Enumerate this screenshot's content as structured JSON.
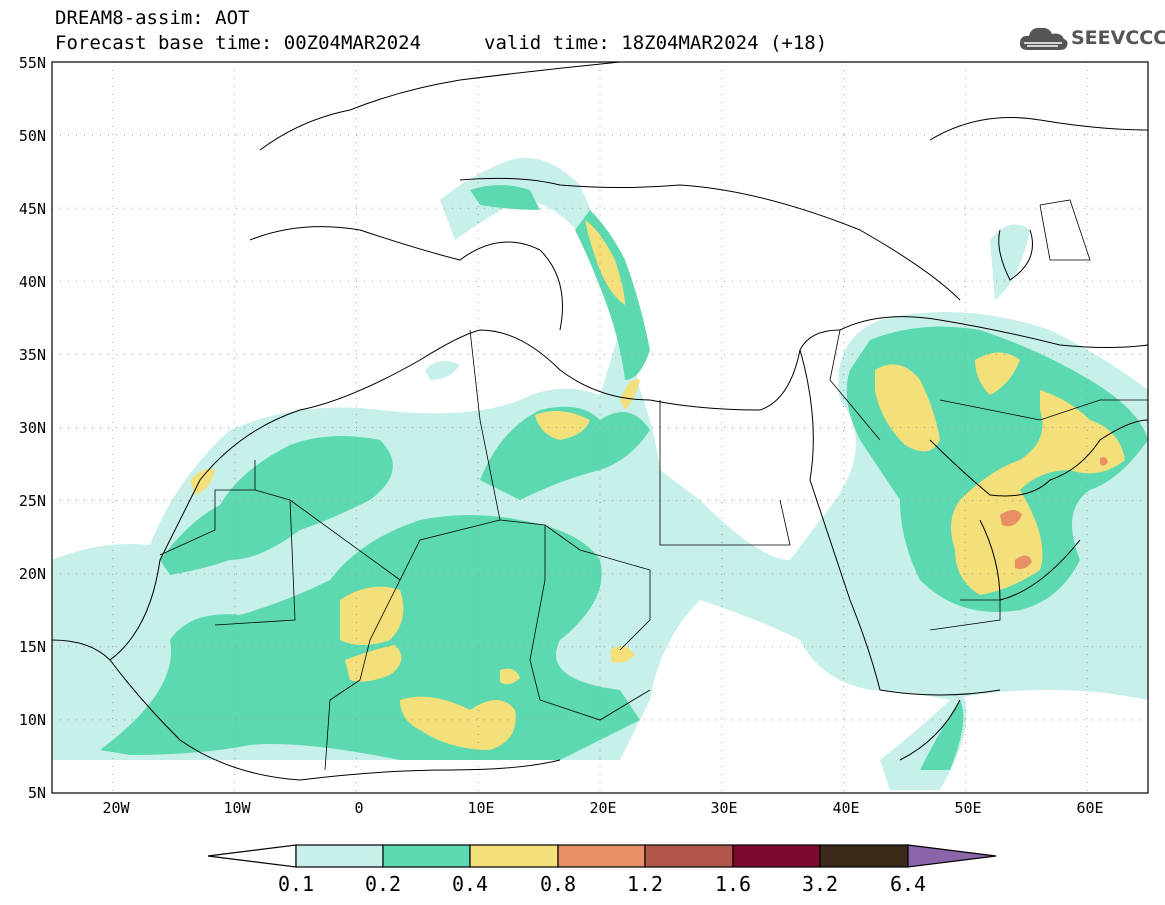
{
  "header": {
    "line1": "DREAM8-assim: AOT",
    "base_time": "Forecast base time: 00Z04MAR2024",
    "valid_time": "valid time: 18Z04MAR2024 (+18)"
  },
  "logo": {
    "icon": "cloud-icon",
    "text": "SEEVCCC"
  },
  "map": {
    "lat_labels": [
      "55N",
      "50N",
      "45N",
      "40N",
      "35N",
      "30N",
      "25N",
      "20N",
      "15N",
      "10N",
      "5N"
    ],
    "lon_labels": [
      "20W",
      "10W",
      "0",
      "10E",
      "20E",
      "30E",
      "40E",
      "50E",
      "60E"
    ],
    "lat_range": [
      5,
      55
    ],
    "lon_range": [
      -25,
      65
    ],
    "grid": true
  },
  "colorbar": {
    "ticks": [
      "0.1",
      "0.2",
      "0.4",
      "0.8",
      "1.2",
      "1.6",
      "3.2",
      "6.4"
    ],
    "colors": [
      "#c8f0eb",
      "#5cd9b0",
      "#f3e07a",
      "#e88f66",
      "#b2564a",
      "#7a0b2c",
      "#3b2a1a",
      "#8c64a8"
    ]
  }
}
